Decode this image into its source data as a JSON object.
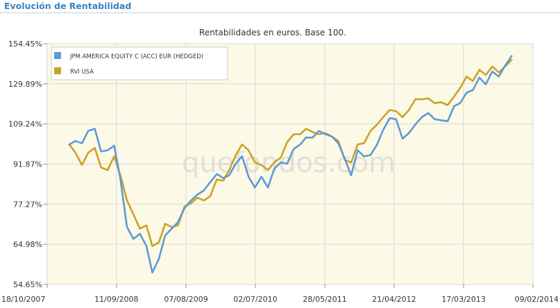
{
  "header": {
    "title": "Evolución de Rentabilidad"
  },
  "watermark": "quefondos.com",
  "colors": {
    "accent": "#3f82bd",
    "plot_background": "#fdf9e7",
    "series1": "#5b9bd5",
    "series2": "#c9a227"
  },
  "chart_data": {
    "type": "line",
    "title": "Rentabilidades en euros. Base 100.",
    "xlabel": "",
    "ylabel": "",
    "ylim": [
      54.65,
      154.45
    ],
    "y_scale": "log",
    "grid": true,
    "legend_position": "top-left",
    "x_range": [
      "2007-10-18",
      "2014-02-09"
    ],
    "y_ticks": [
      "154.45%",
      "129.89%",
      "109.24%",
      "91.87%",
      "77.27%",
      "64.98%",
      "54.65%"
    ],
    "y_tick_values": [
      154.45,
      129.89,
      109.24,
      91.87,
      77.27,
      64.98,
      54.65
    ],
    "x_ticks": [
      "18/10/2007",
      "11/09/2008",
      "07/08/2009",
      "02/07/2010",
      "28/05/2011",
      "21/04/2012",
      "17/03/2013",
      "09/02/2014"
    ],
    "x_tick_dates": [
      "2007-10-18",
      "2008-09-11",
      "2009-08-07",
      "2010-07-02",
      "2011-05-28",
      "2012-04-21",
      "2013-03-17",
      "2014-02-09"
    ],
    "series": [
      {
        "name": "JPM AMERICA EQUITY C (ACC) EUR (HEDGED)",
        "color": "#5b9bd5",
        "points": [
          [
            "2008-01-31",
            100.0
          ],
          [
            "2008-02-29",
            101.5
          ],
          [
            "2008-03-31",
            100.5
          ],
          [
            "2008-04-30",
            106.0
          ],
          [
            "2008-05-31",
            107.0
          ],
          [
            "2008-06-30",
            97.0
          ],
          [
            "2008-07-31",
            97.5
          ],
          [
            "2008-08-31",
            99.5
          ],
          [
            "2008-09-30",
            86.0
          ],
          [
            "2008-10-31",
            70.0
          ],
          [
            "2008-11-30",
            66.5
          ],
          [
            "2008-12-31",
            68.0
          ],
          [
            "2009-01-31",
            64.5
          ],
          [
            "2009-02-28",
            57.5
          ],
          [
            "2009-03-31",
            61.0
          ],
          [
            "2009-04-30",
            67.5
          ],
          [
            "2009-05-31",
            69.5
          ],
          [
            "2009-06-30",
            71.5
          ],
          [
            "2009-07-31",
            76.0
          ],
          [
            "2009-08-31",
            78.5
          ],
          [
            "2009-09-30",
            80.5
          ],
          [
            "2009-10-31",
            82.0
          ],
          [
            "2009-11-30",
            85.0
          ],
          [
            "2009-12-31",
            88.0
          ],
          [
            "2010-01-31",
            86.5
          ],
          [
            "2010-02-28",
            87.5
          ],
          [
            "2010-03-31",
            92.0
          ],
          [
            "2010-04-30",
            95.0
          ],
          [
            "2010-05-31",
            87.0
          ],
          [
            "2010-06-30",
            83.0
          ],
          [
            "2010-07-31",
            87.0
          ],
          [
            "2010-08-31",
            83.0
          ],
          [
            "2010-09-30",
            90.0
          ],
          [
            "2010-10-31",
            92.5
          ],
          [
            "2010-11-30",
            92.0
          ],
          [
            "2010-12-31",
            98.0
          ],
          [
            "2011-01-31",
            100.0
          ],
          [
            "2011-02-28",
            103.0
          ],
          [
            "2011-03-31",
            103.0
          ],
          [
            "2011-04-30",
            106.0
          ],
          [
            "2011-05-31",
            104.5
          ],
          [
            "2011-06-30",
            103.5
          ],
          [
            "2011-07-31",
            100.5
          ],
          [
            "2011-08-31",
            94.0
          ],
          [
            "2011-09-30",
            87.5
          ],
          [
            "2011-10-31",
            97.5
          ],
          [
            "2011-11-30",
            95.0
          ],
          [
            "2011-12-31",
            95.5
          ],
          [
            "2012-01-31",
            100.0
          ],
          [
            "2012-02-29",
            106.5
          ],
          [
            "2012-03-31",
            112.0
          ],
          [
            "2012-04-30",
            111.5
          ],
          [
            "2012-05-31",
            102.5
          ],
          [
            "2012-06-30",
            105.0
          ],
          [
            "2012-07-31",
            109.0
          ],
          [
            "2012-08-31",
            112.5
          ],
          [
            "2012-09-30",
            114.5
          ],
          [
            "2012-10-31",
            111.5
          ],
          [
            "2012-11-30",
            111.0
          ],
          [
            "2012-12-31",
            110.5
          ],
          [
            "2013-01-31",
            118.0
          ],
          [
            "2013-02-28",
            119.5
          ],
          [
            "2013-03-31",
            125.0
          ],
          [
            "2013-04-30",
            126.5
          ],
          [
            "2013-05-31",
            133.5
          ],
          [
            "2013-06-30",
            129.5
          ],
          [
            "2013-07-31",
            137.0
          ],
          [
            "2013-08-31",
            134.0
          ],
          [
            "2013-09-30",
            140.5
          ],
          [
            "2013-10-31",
            146.5
          ]
        ]
      },
      {
        "name": "RVI USA",
        "color": "#c9a227",
        "points": [
          [
            "2008-01-31",
            100.0
          ],
          [
            "2008-02-29",
            96.5
          ],
          [
            "2008-03-31",
            91.5
          ],
          [
            "2008-04-30",
            96.5
          ],
          [
            "2008-05-31",
            98.5
          ],
          [
            "2008-06-30",
            90.5
          ],
          [
            "2008-07-31",
            89.5
          ],
          [
            "2008-08-31",
            95.0
          ],
          [
            "2008-09-30",
            87.5
          ],
          [
            "2008-10-31",
            78.5
          ],
          [
            "2008-11-30",
            74.0
          ],
          [
            "2008-12-31",
            69.5
          ],
          [
            "2009-01-31",
            70.5
          ],
          [
            "2009-02-28",
            64.5
          ],
          [
            "2009-03-31",
            65.5
          ],
          [
            "2009-04-30",
            71.0
          ],
          [
            "2009-05-31",
            70.0
          ],
          [
            "2009-06-30",
            70.5
          ],
          [
            "2009-07-31",
            76.5
          ],
          [
            "2009-08-31",
            77.5
          ],
          [
            "2009-09-30",
            79.5
          ],
          [
            "2009-10-31",
            78.5
          ],
          [
            "2009-11-30",
            80.0
          ],
          [
            "2009-12-31",
            86.0
          ],
          [
            "2010-01-31",
            85.5
          ],
          [
            "2010-02-28",
            89.5
          ],
          [
            "2010-03-31",
            95.5
          ],
          [
            "2010-04-30",
            100.0
          ],
          [
            "2010-05-31",
            97.5
          ],
          [
            "2010-06-30",
            92.5
          ],
          [
            "2010-07-31",
            91.5
          ],
          [
            "2010-08-31",
            89.5
          ],
          [
            "2010-09-30",
            92.5
          ],
          [
            "2010-10-31",
            94.5
          ],
          [
            "2010-11-30",
            101.0
          ],
          [
            "2010-12-31",
            104.5
          ],
          [
            "2011-01-31",
            104.5
          ],
          [
            "2011-02-28",
            107.0
          ],
          [
            "2011-03-31",
            105.5
          ],
          [
            "2011-04-30",
            104.5
          ],
          [
            "2011-05-31",
            105.0
          ],
          [
            "2011-06-30",
            103.5
          ],
          [
            "2011-07-31",
            101.5
          ],
          [
            "2011-08-31",
            93.5
          ],
          [
            "2011-09-30",
            92.5
          ],
          [
            "2011-10-31",
            100.0
          ],
          [
            "2011-11-30",
            100.5
          ],
          [
            "2011-12-31",
            106.0
          ],
          [
            "2012-01-31",
            109.0
          ],
          [
            "2012-02-29",
            112.5
          ],
          [
            "2012-03-31",
            116.0
          ],
          [
            "2012-04-30",
            115.5
          ],
          [
            "2012-05-31",
            112.5
          ],
          [
            "2012-06-30",
            116.0
          ],
          [
            "2012-07-31",
            121.5
          ],
          [
            "2012-08-31",
            121.5
          ],
          [
            "2012-09-30",
            122.0
          ],
          [
            "2012-10-31",
            119.5
          ],
          [
            "2012-11-30",
            120.0
          ],
          [
            "2012-12-31",
            118.5
          ],
          [
            "2013-01-31",
            123.0
          ],
          [
            "2013-02-28",
            127.5
          ],
          [
            "2013-03-31",
            134.0
          ],
          [
            "2013-04-30",
            131.5
          ],
          [
            "2013-05-31",
            138.0
          ],
          [
            "2013-06-30",
            135.0
          ],
          [
            "2013-07-31",
            140.0
          ],
          [
            "2013-08-31",
            136.5
          ],
          [
            "2013-09-30",
            140.0
          ],
          [
            "2013-10-31",
            144.0
          ]
        ]
      }
    ]
  }
}
